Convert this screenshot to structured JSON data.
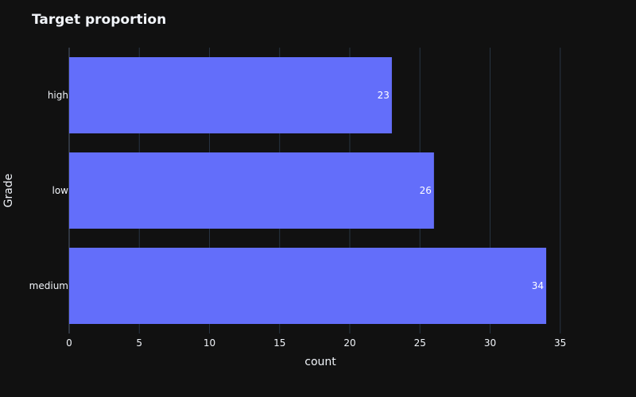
{
  "chart_data": {
    "type": "bar",
    "orientation": "horizontal",
    "title": "Target proportion",
    "xlabel": "count",
    "ylabel": "Grade",
    "categories": [
      "high",
      "low",
      "medium"
    ],
    "values": [
      23,
      26,
      34
    ],
    "data_labels": [
      "23",
      "26",
      "34"
    ],
    "xlim": [
      0,
      37
    ],
    "xticks": [
      0,
      5,
      10,
      15,
      20,
      25,
      30,
      35
    ],
    "xtick_labels": [
      "0",
      "5",
      "10",
      "15",
      "20",
      "25",
      "30",
      "35"
    ],
    "grid": "vertical",
    "legend": "none"
  },
  "colors": {
    "background": "#111111",
    "bar": "#636efa",
    "grid": "#283442",
    "text": "#f2f5fa"
  }
}
